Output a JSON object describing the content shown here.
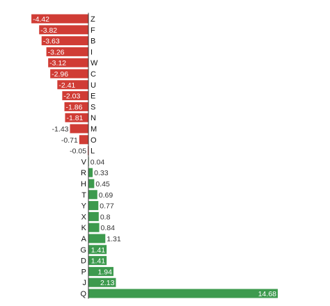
{
  "chart_data": {
    "type": "bar",
    "orientation": "horizontal",
    "title": "",
    "xlabel": "",
    "ylabel": "",
    "grid": false,
    "legend": "none",
    "colors": {
      "negative": "#d03c35",
      "positive": "#3d9a4e",
      "axis": "#333333"
    },
    "categories": [
      "Z",
      "F",
      "B",
      "I",
      "W",
      "C",
      "U",
      "E",
      "S",
      "N",
      "M",
      "O",
      "L",
      "V",
      "R",
      "H",
      "T",
      "Y",
      "X",
      "K",
      "A",
      "G",
      "D",
      "P",
      "J",
      "Q"
    ],
    "values": [
      -4.42,
      -3.82,
      -3.63,
      -3.26,
      -3.12,
      -2.96,
      -2.41,
      -2.03,
      -1.86,
      -1.81,
      -1.43,
      -0.71,
      -0.05,
      0.04,
      0.33,
      0.45,
      0.69,
      0.77,
      0.8,
      0.84,
      1.31,
      1.41,
      1.41,
      1.94,
      2.13,
      14.68
    ],
    "labels": [
      "-4.42",
      "-3.82",
      "-3.63",
      "-3.26",
      "-3.12",
      "-2.96",
      "-2.41",
      "-2.03",
      "-1.86",
      "-1.81",
      "-1.43",
      "-0.71",
      "-0.05",
      "0.04",
      "0.33",
      "0.45",
      "0.69",
      "0.77",
      "0.8",
      "0.84",
      "1.31",
      "1.41",
      "1.41",
      "1.94",
      "2.13",
      "14.68"
    ]
  }
}
